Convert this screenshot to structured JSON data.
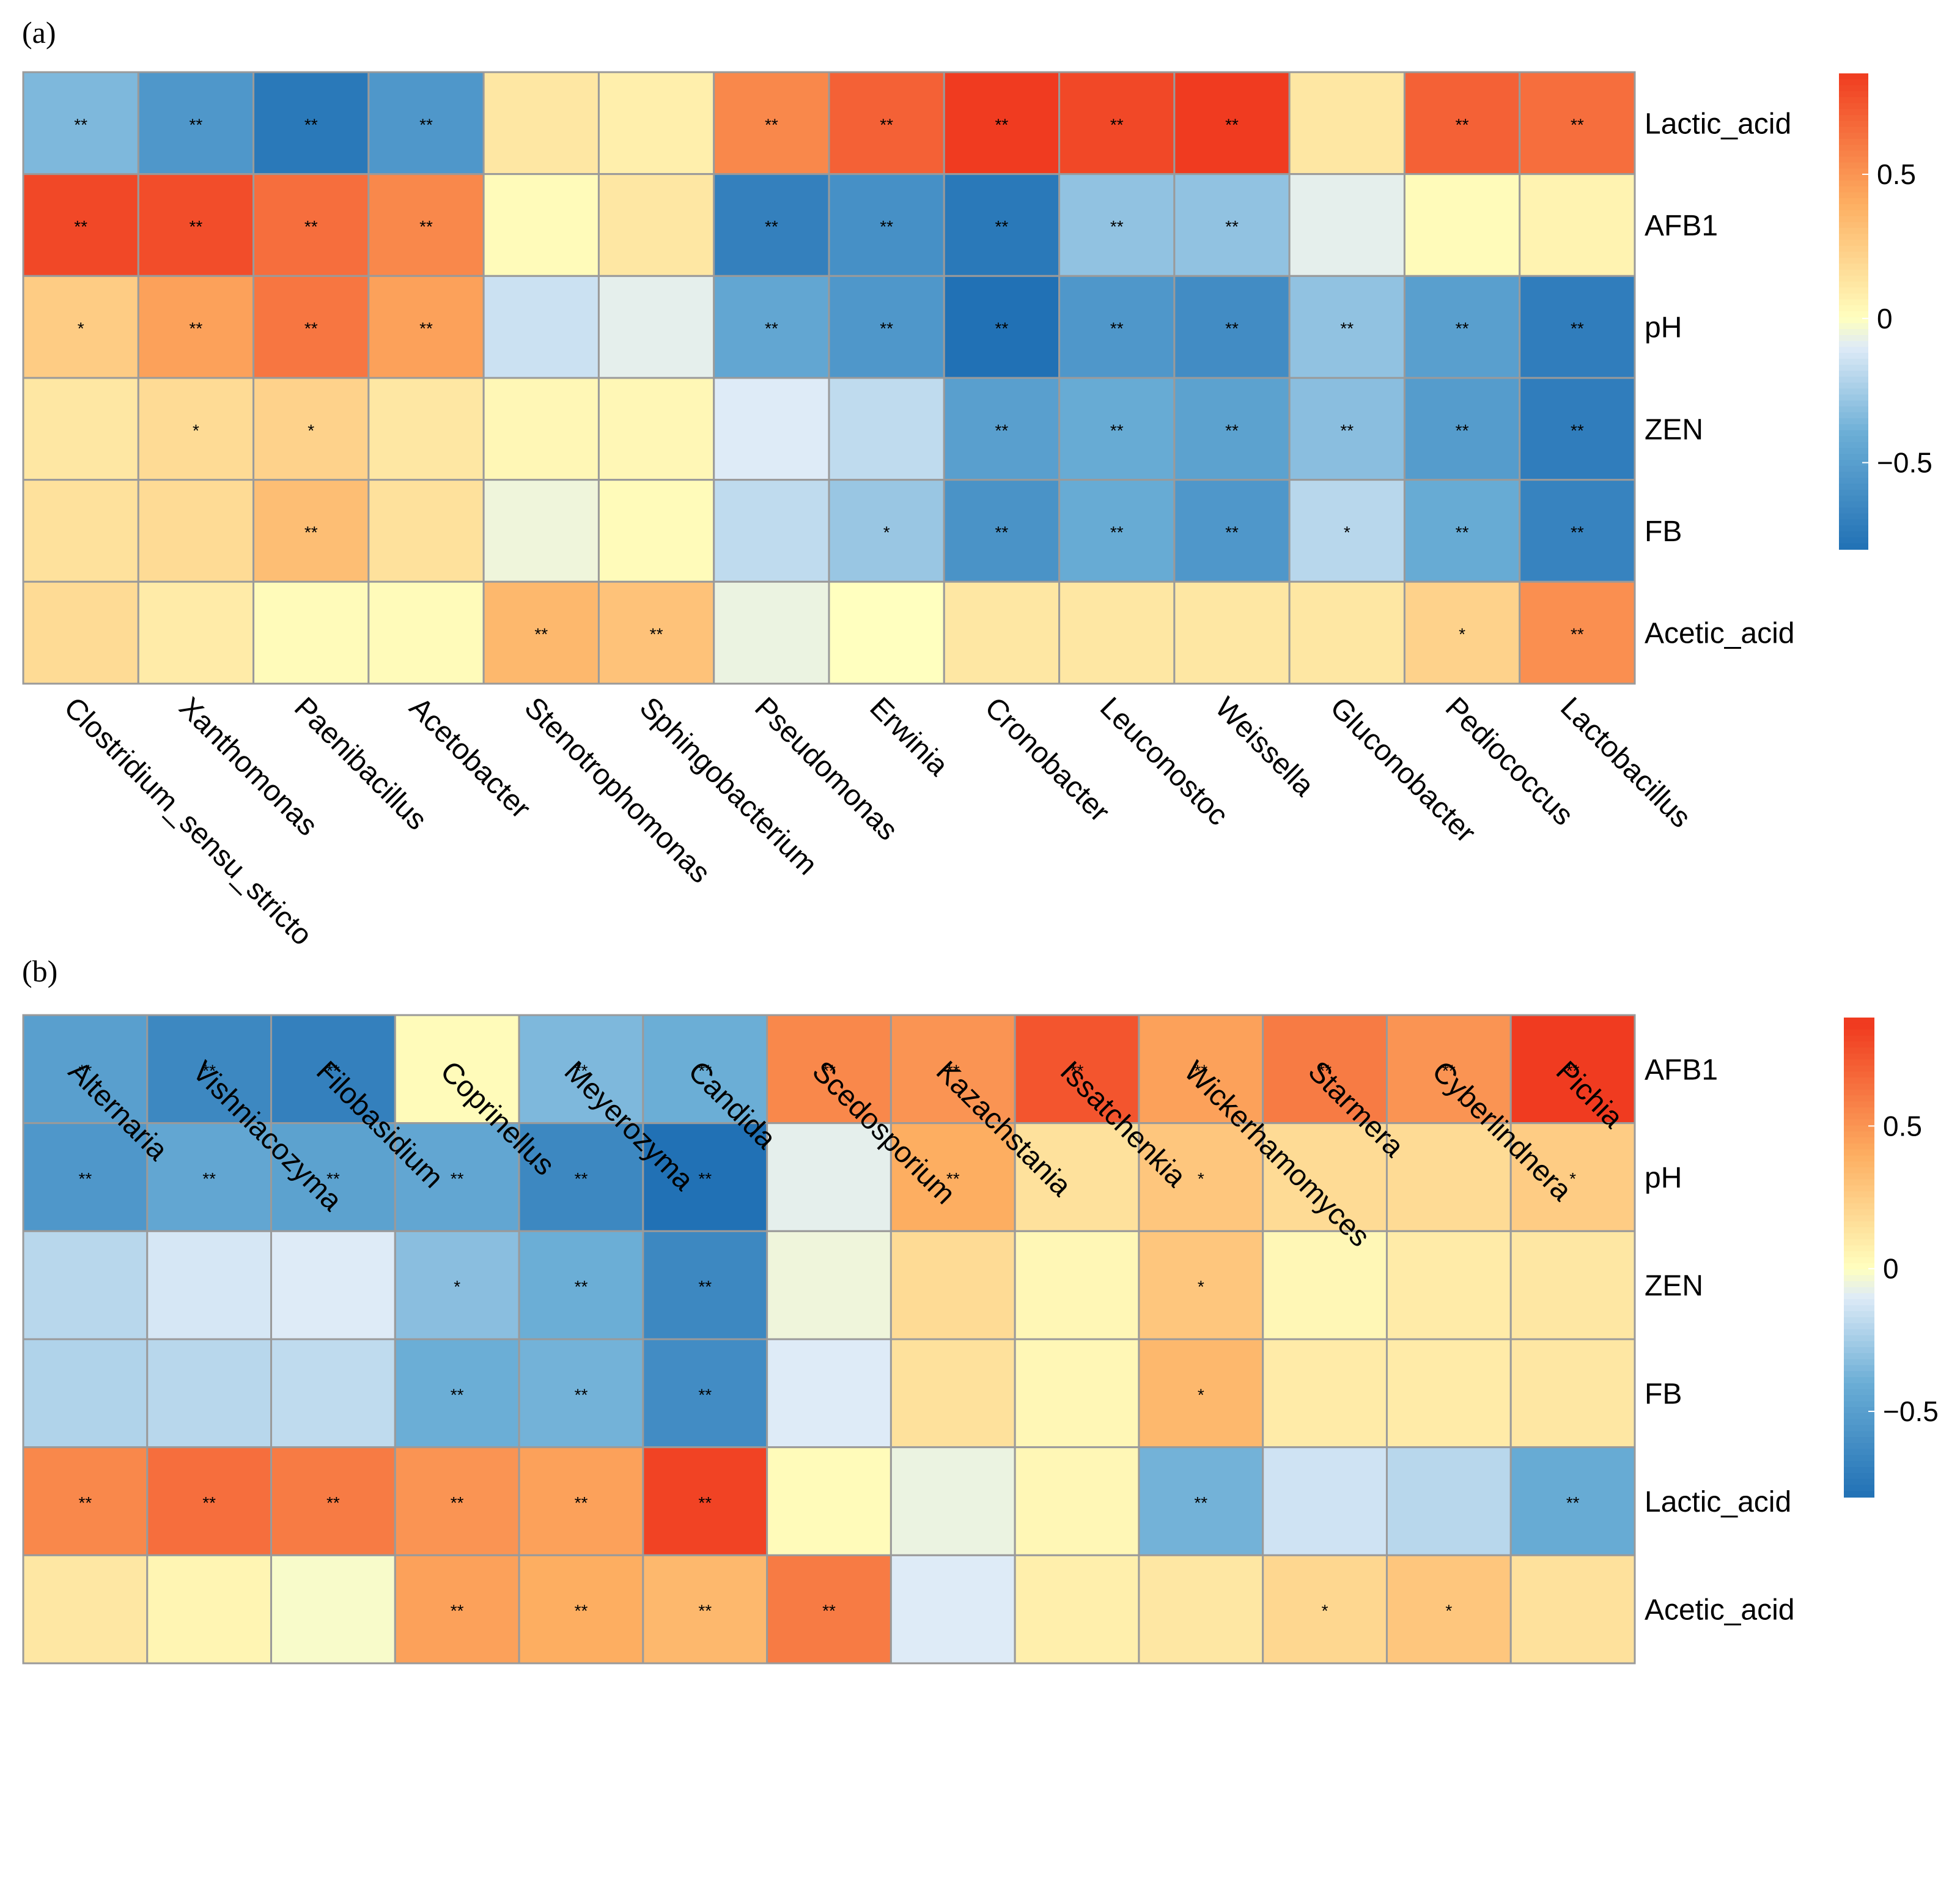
{
  "palette": [
    "#2171b5",
    "#6baed6",
    "#deebf7",
    "#ffffbf",
    "#fdae61",
    "#f03b20"
  ],
  "chart_data": [
    {
      "type": "heatmap",
      "panel": "(a)",
      "rows": [
        "Lactic_acid",
        "AFB1",
        "pH",
        "ZEN",
        "FB",
        "Acetic_acid"
      ],
      "columns": [
        "Clostridium_sensu_stricto",
        "Xanthomonas",
        "Paenibacillus",
        "Acetobacter",
        "Stenotrophomonas",
        "Sphingobacterium",
        "Pseudomonas",
        "Erwinia",
        "Cronobacter",
        "Leuconostoc",
        "Weissella",
        "Gluconobacter",
        "Pediococcus",
        "Lactobacillus"
      ],
      "values": [
        [
          -0.35,
          -0.55,
          -0.75,
          -0.55,
          0.12,
          0.08,
          0.55,
          0.7,
          0.85,
          0.8,
          0.9,
          0.12,
          0.7,
          0.65
        ],
        [
          0.8,
          0.78,
          0.65,
          0.55,
          0.02,
          0.12,
          -0.7,
          -0.6,
          -0.75,
          -0.3,
          -0.3,
          -0.08,
          0.02,
          0.06
        ],
        [
          0.25,
          0.45,
          0.62,
          0.45,
          -0.15,
          -0.08,
          -0.45,
          -0.55,
          -0.85,
          -0.55,
          -0.62,
          -0.3,
          -0.5,
          -0.72
        ],
        [
          0.12,
          0.18,
          0.22,
          0.12,
          0.04,
          0.04,
          -0.1,
          -0.18,
          -0.5,
          -0.42,
          -0.48,
          -0.32,
          -0.52,
          -0.72
        ],
        [
          0.15,
          0.18,
          0.32,
          0.15,
          -0.05,
          0.02,
          -0.18,
          -0.28,
          -0.58,
          -0.42,
          -0.55,
          -0.2,
          -0.42,
          -0.68
        ],
        [
          0.18,
          0.1,
          0.02,
          0.02,
          0.35,
          0.3,
          -0.06,
          0.0,
          0.12,
          0.12,
          0.12,
          0.12,
          0.22,
          0.52
        ]
      ],
      "significance": [
        [
          "**",
          "**",
          "**",
          "**",
          "",
          "",
          "**",
          "**",
          "**",
          "**",
          "**",
          "",
          "**",
          "**"
        ],
        [
          "**",
          "**",
          "**",
          "**",
          "",
          "",
          "**",
          "**",
          "**",
          "**",
          "**",
          "",
          "",
          ""
        ],
        [
          "*",
          "**",
          "**",
          "**",
          "",
          "",
          "**",
          "**",
          "**",
          "**",
          "**",
          "**",
          "**",
          "**"
        ],
        [
          "",
          "*",
          "*",
          "",
          "",
          "",
          "",
          "",
          "**",
          "**",
          "**",
          "**",
          "**",
          "**"
        ],
        [
          "",
          "",
          "**",
          "",
          "",
          "",
          "",
          "*",
          "**",
          "**",
          "**",
          "*",
          "**",
          "**"
        ],
        [
          "",
          "",
          "",
          "",
          "**",
          "**",
          "",
          "",
          "",
          "",
          "",
          "",
          "*",
          "**"
        ]
      ],
      "colorbar": {
        "ticks": [
          "0.5",
          "0",
          "−0.5"
        ],
        "tick_values": [
          0.5,
          0,
          -0.5
        ],
        "range": [
          -0.8,
          0.85
        ]
      }
    },
    {
      "type": "heatmap",
      "panel": "(b)",
      "rows": [
        "AFB1",
        "pH",
        "ZEN",
        "FB",
        "Lactic_acid",
        "Acetic_acid"
      ],
      "columns": [
        "Alternaria",
        "Vishniacozyma",
        "Filobasidium",
        "Coprinellus",
        "Meyerozyma",
        "Candida",
        "Scedosporium",
        "Kazachstania",
        "Issatchenkia",
        "Wickerhamomyces",
        "Starmera",
        "Cyberlindnera",
        "Pichia"
      ],
      "values": [
        [
          -0.5,
          -0.65,
          -0.7,
          0.02,
          -0.35,
          -0.4,
          0.55,
          0.5,
          0.75,
          0.45,
          0.6,
          0.5,
          0.88
        ],
        [
          -0.55,
          -0.45,
          -0.48,
          -0.45,
          -0.65,
          -0.82,
          -0.08,
          0.4,
          0.15,
          0.28,
          0.18,
          0.18,
          0.25
        ],
        [
          -0.2,
          -0.12,
          -0.1,
          -0.32,
          -0.4,
          -0.65,
          -0.05,
          0.18,
          0.04,
          0.28,
          0.04,
          0.1,
          0.12
        ],
        [
          -0.22,
          -0.2,
          -0.18,
          -0.4,
          -0.38,
          -0.62,
          -0.1,
          0.15,
          0.04,
          0.35,
          0.1,
          0.1,
          0.12
        ],
        [
          0.55,
          0.65,
          0.6,
          0.5,
          0.45,
          0.82,
          0.02,
          -0.06,
          0.04,
          -0.38,
          -0.14,
          -0.2,
          -0.42
        ],
        [
          0.12,
          0.05,
          -0.02,
          0.45,
          0.4,
          0.35,
          0.6,
          -0.1,
          0.08,
          0.12,
          0.2,
          0.28,
          0.15
        ]
      ],
      "significance": [
        [
          "**",
          "**",
          "**",
          "",
          "**",
          "**",
          "**",
          "**",
          "**",
          "**",
          "**",
          "**",
          "**"
        ],
        [
          "**",
          "**",
          "**",
          "**",
          "**",
          "**",
          "",
          "**",
          "",
          "*",
          "",
          "",
          "*"
        ],
        [
          "",
          "",
          "",
          "*",
          "**",
          "**",
          "",
          "",
          "",
          "*",
          "",
          "",
          ""
        ],
        [
          "",
          "",
          "",
          "**",
          "**",
          "**",
          "",
          "",
          "",
          "*",
          "",
          "",
          ""
        ],
        [
          "**",
          "**",
          "**",
          "**",
          "**",
          "**",
          "",
          "",
          "",
          "**",
          "",
          "",
          "**"
        ],
        [
          "",
          "",
          "",
          "**",
          "**",
          "**",
          "**",
          "",
          "",
          "",
          "*",
          "*",
          ""
        ]
      ],
      "colorbar": {
        "ticks": [
          "0.5",
          "0",
          "−0.5"
        ],
        "tick_values": [
          0.5,
          0,
          -0.5
        ],
        "range": [
          -0.8,
          0.88
        ]
      }
    }
  ]
}
